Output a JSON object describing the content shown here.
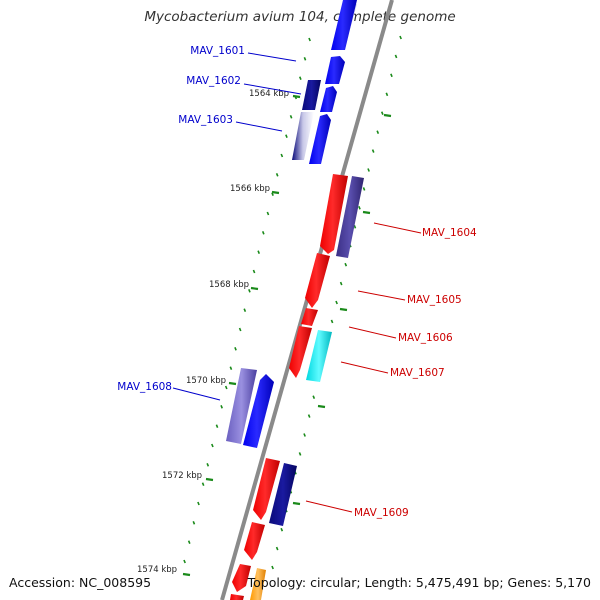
{
  "title": "Mycobacterium avium 104, complete genome",
  "accession_text": "Accession: NC_008595",
  "stats_text": "Topology: circular; Length: 5,475,491 bp; Genes: 5,170",
  "colors": {
    "plus_strand": "#0000ee",
    "minus_strand": "#ee0000",
    "plus_label": "#0000cc",
    "minus_label": "#cc0000",
    "navy": "#0a0a7a",
    "slate": "#4b3f96",
    "lavender": "#8a7fd0",
    "cyan": "#00e8ee",
    "orange": "#ffa51a",
    "backbone": "#8a8a8a",
    "tick": "#1a8a1a"
  },
  "scale_ticks": [
    {
      "label": "1564 kbp"
    },
    {
      "label": "1566 kbp"
    },
    {
      "label": "1568 kbp"
    },
    {
      "label": "1570 kbp"
    },
    {
      "label": "1572 kbp"
    },
    {
      "label": "1574 kbp"
    }
  ],
  "gene_labels": [
    {
      "name": "MAV_1601",
      "strand": "plus"
    },
    {
      "name": "MAV_1602",
      "strand": "plus"
    },
    {
      "name": "MAV_1603",
      "strand": "plus"
    },
    {
      "name": "MAV_1604",
      "strand": "minus"
    },
    {
      "name": "MAV_1605",
      "strand": "minus"
    },
    {
      "name": "MAV_1606",
      "strand": "minus"
    },
    {
      "name": "MAV_1607",
      "strand": "minus"
    },
    {
      "name": "MAV_1608",
      "strand": "plus"
    },
    {
      "name": "MAV_1609",
      "strand": "minus"
    }
  ]
}
